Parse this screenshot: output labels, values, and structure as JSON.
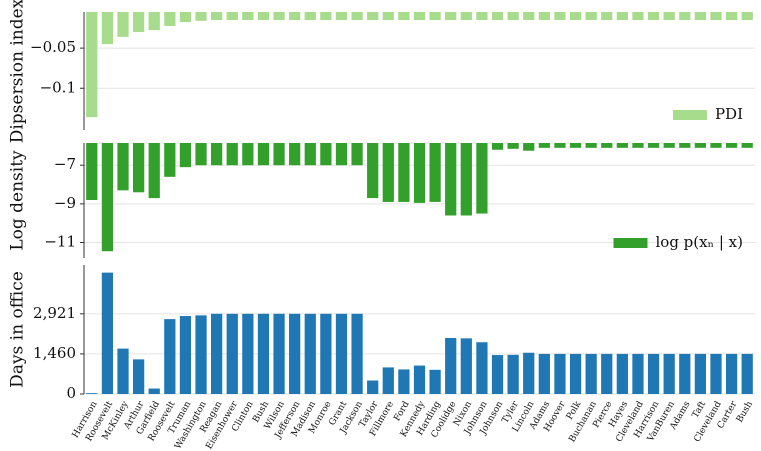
{
  "chart_data": [
    {
      "type": "bar",
      "ylabel": "Dipsersion index",
      "ylim": [
        -0.152,
        -0.005
      ],
      "yticks": [
        {
          "value": -0.05,
          "label": "−0.05"
        },
        {
          "value": -0.1,
          "label": "−0.1"
        }
      ],
      "grid": true,
      "legend": "lower right",
      "series": [
        {
          "name": "PDI",
          "color": "#a6dc8c",
          "values": [
            -0.136,
            -0.045,
            -0.036,
            -0.03,
            -0.0275,
            -0.0225,
            -0.0175,
            -0.016,
            -0.015,
            -0.015,
            -0.015,
            -0.015,
            -0.015,
            -0.015,
            -0.015,
            -0.015,
            -0.015,
            -0.015,
            -0.015,
            -0.015,
            -0.015,
            -0.015,
            -0.015,
            -0.015,
            -0.015,
            -0.015,
            -0.015,
            -0.015,
            -0.015,
            -0.015,
            -0.015,
            -0.015,
            -0.015,
            -0.015,
            -0.015,
            -0.015,
            -0.015,
            -0.015,
            -0.015,
            -0.015,
            -0.015,
            -0.015,
            -0.015
          ]
        }
      ]
    },
    {
      "type": "bar",
      "ylabel": "Log density",
      "ylim": [
        -11.8,
        -5.85
      ],
      "yticks": [
        {
          "value": -7,
          "label": "−7"
        },
        {
          "value": -9,
          "label": "−9"
        },
        {
          "value": -11,
          "label": "−11"
        }
      ],
      "grid": true,
      "legend": "lower right",
      "series": [
        {
          "name": "log p(xₙ | x)",
          "color": "#33a02c",
          "values": [
            -8.8,
            -11.45,
            -8.3,
            -8.4,
            -8.7,
            -7.6,
            -7.1,
            -7.0,
            -7.0,
            -7.0,
            -7.0,
            -7.0,
            -7.0,
            -7.0,
            -7.0,
            -7.0,
            -7.0,
            -7.0,
            -8.7,
            -8.9,
            -8.9,
            -8.95,
            -8.9,
            -9.6,
            -9.6,
            -9.5,
            -6.2,
            -6.15,
            -6.25,
            -6.1,
            -6.1,
            -6.1,
            -6.1,
            -6.1,
            -6.1,
            -6.1,
            -6.1,
            -6.1,
            -6.1,
            -6.1,
            -6.1,
            -6.1,
            -6.1
          ]
        }
      ]
    },
    {
      "type": "bar",
      "ylabel": "Days in office",
      "ylim": [
        0,
        4700
      ],
      "yticks": [
        0,
        {
          "value": 1460,
          "label": "1,460"
        },
        {
          "value": 2921,
          "label": "2,921"
        }
      ],
      "grid": true,
      "categories": [
        "Harrison",
        "Roosevelt",
        "McKinley",
        "Arthur",
        "Garfield",
        "Roosevelt",
        "Truman",
        "Washington",
        "Reagan",
        "Eisenhower",
        "Clinton",
        "Bush",
        "Wilson",
        "Jefferson",
        "Madison",
        "Monroe",
        "Grant",
        "Jackson",
        "Taylor",
        "Fillmore",
        "Ford",
        "Kennedy",
        "Harding",
        "Coolidge",
        "Nixon",
        "Johnson",
        "Johnson",
        "Tyler",
        "Lincoln",
        "Adams",
        "Hoover",
        "Polk",
        "Buchanan",
        "Pierce",
        "Hayes",
        "Cleveland",
        "Harrison",
        "VanBuren",
        "Adams",
        "Taft",
        "Cleveland",
        "Carter",
        "Bush"
      ],
      "series": [
        {
          "name": "Days in office",
          "color": "#1f78b4",
          "values": [
            31,
            4422,
            1654,
            1262,
            199,
            2728,
            2840,
            2865,
            2922,
            2922,
            2922,
            2922,
            2922,
            2922,
            2922,
            2922,
            2922,
            2922,
            492,
            969,
            895,
            1036,
            881,
            2041,
            2027,
            1886,
            1419,
            1427,
            1503,
            1461,
            1461,
            1461,
            1461,
            1461,
            1461,
            1461,
            1461,
            1461,
            1461,
            1461,
            1461,
            1461,
            1461
          ]
        }
      ]
    }
  ]
}
